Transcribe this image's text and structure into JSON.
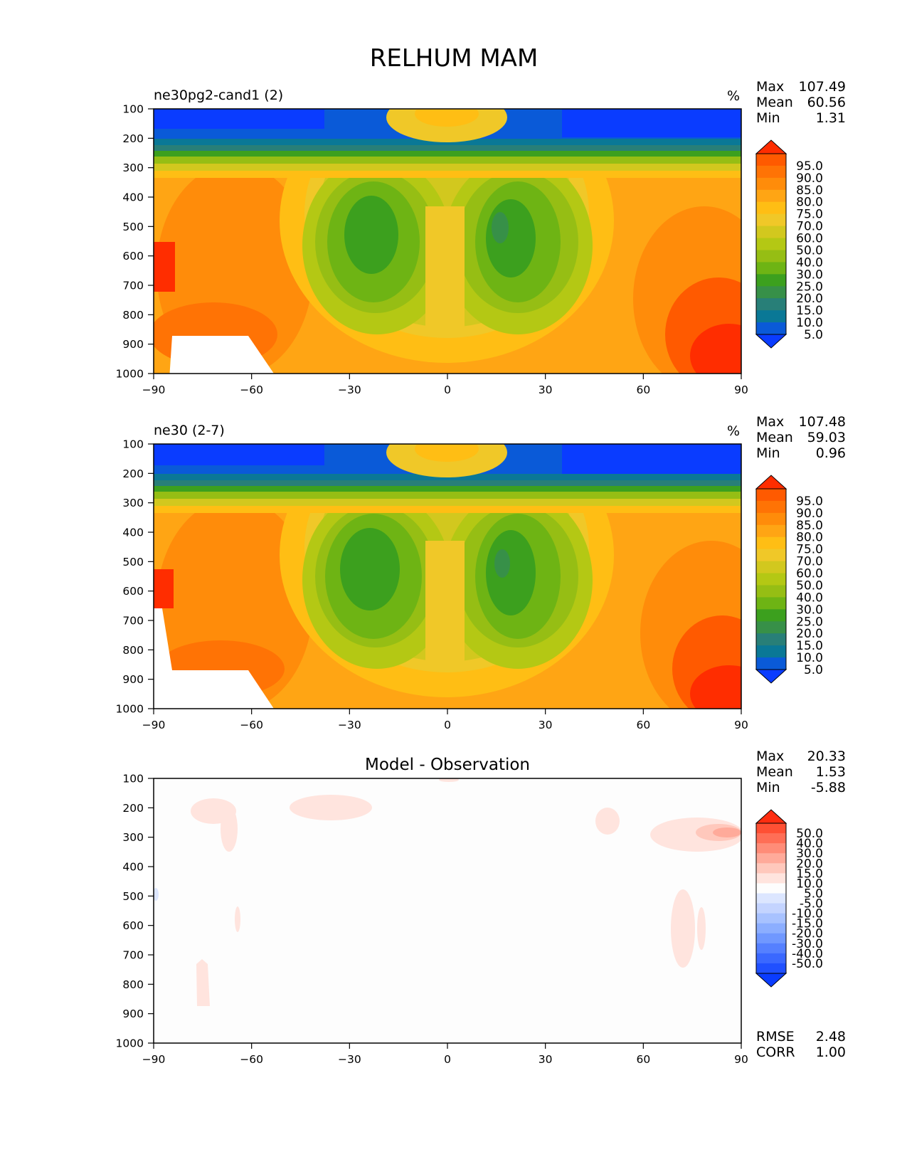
{
  "figure": {
    "title": "RELHUM MAM"
  },
  "colors": {
    "relhum_levels": [
      "#0a3cff",
      "#0a5ad8",
      "#0a7896",
      "#287f78",
      "#379048",
      "#3ca01e",
      "#6eb414",
      "#96be14",
      "#b4c814",
      "#d2c81e",
      "#f0c828",
      "#ffbe14",
      "#ffa514",
      "#ff8c0a",
      "#ff7305",
      "#ff5a00",
      "#ff2d00"
    ],
    "diff_levels": [
      "#0a3cff",
      "#2050ff",
      "#3a68ff",
      "#5580ff",
      "#7098ff",
      "#8caeff",
      "#a8c2ff",
      "#c4d4ff",
      "#dce6ff",
      "#fdfdfd",
      "#ffe4de",
      "#ffc8bc",
      "#ffaa9a",
      "#ff8c78",
      "#ff6e56",
      "#ff5034",
      "#ff2d10"
    ],
    "missing": "#ffffff"
  },
  "chart_data": [
    {
      "type": "contour",
      "title_left": "ne30pg2-cand1 (2)",
      "units": "%",
      "xlabel": "",
      "ylabel": "",
      "xlim": [
        -90,
        90
      ],
      "ylim": [
        1000,
        100
      ],
      "xticks": [
        "−90",
        "−60",
        "−30",
        "0",
        "30",
        "60",
        "90"
      ],
      "yticks": [
        "100",
        "200",
        "300",
        "400",
        "500",
        "600",
        "700",
        "800",
        "900",
        "1000"
      ],
      "stats": [
        {
          "label": "Max",
          "value": "107.49"
        },
        {
          "label": "Mean",
          "value": "60.56"
        },
        {
          "label": "Min",
          "value": "1.31"
        }
      ],
      "levels": [
        "95.0",
        "90.0",
        "85.0",
        "80.0",
        "75.0",
        "70.0",
        "60.0",
        "50.0",
        "40.0",
        "30.0",
        "25.0",
        "20.0",
        "15.0",
        "10.0",
        "5.0"
      ],
      "colormap": "relhum"
    },
    {
      "type": "contour",
      "title_left": "ne30 (2-7)",
      "units": "%",
      "xlabel": "",
      "ylabel": "",
      "xlim": [
        -90,
        90
      ],
      "ylim": [
        1000,
        100
      ],
      "xticks": [
        "−90",
        "−60",
        "−30",
        "0",
        "30",
        "60",
        "90"
      ],
      "yticks": [
        "100",
        "200",
        "300",
        "400",
        "500",
        "600",
        "700",
        "800",
        "900",
        "1000"
      ],
      "stats": [
        {
          "label": "Max",
          "value": "107.48"
        },
        {
          "label": "Mean",
          "value": "59.03"
        },
        {
          "label": "Min",
          "value": "0.96"
        }
      ],
      "levels": [
        "95.0",
        "90.0",
        "85.0",
        "80.0",
        "75.0",
        "70.0",
        "60.0",
        "50.0",
        "40.0",
        "30.0",
        "25.0",
        "20.0",
        "15.0",
        "10.0",
        "5.0"
      ],
      "colormap": "relhum"
    },
    {
      "type": "contour",
      "title_center": "Model - Observation",
      "xlabel": "",
      "ylabel": "",
      "xlim": [
        -90,
        90
      ],
      "ylim": [
        1000,
        100
      ],
      "xticks": [
        "−90",
        "−60",
        "−30",
        "0",
        "30",
        "60",
        "90"
      ],
      "yticks": [
        "100",
        "200",
        "300",
        "400",
        "500",
        "600",
        "700",
        "800",
        "900",
        "1000"
      ],
      "stats": [
        {
          "label": "Max",
          "value": "20.33"
        },
        {
          "label": "Mean",
          "value": "1.53"
        },
        {
          "label": "Min",
          "value": "-5.88"
        }
      ],
      "levels": [
        "50.0",
        "40.0",
        "30.0",
        "20.0",
        "15.0",
        "10.0",
        "5.0",
        "-5.0",
        "-10.0",
        "-15.0",
        "-20.0",
        "-30.0",
        "-40.0",
        "-50.0"
      ],
      "extra_stats": [
        {
          "label": "RMSE",
          "value": "2.48"
        },
        {
          "label": "CORR",
          "value": "1.00"
        }
      ],
      "colormap": "diff"
    }
  ]
}
